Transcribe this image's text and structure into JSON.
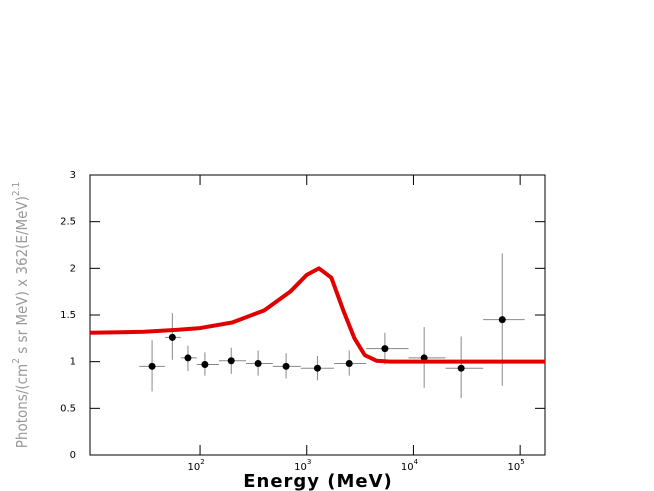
{
  "chart_data": {
    "type": "scatter",
    "xlabel": "Energy (MeV)",
    "ylabel": [
      "Photons/(cm",
      "2",
      " s sr MeV) x 362(E/MeV)",
      "2.1"
    ],
    "xscale": "log",
    "xlim": [
      9.3,
      171000
    ],
    "ylim": [
      0,
      3
    ],
    "xticks": [
      {
        "value": 100,
        "label": "10",
        "sup": "2"
      },
      {
        "value": 1000,
        "label": "10",
        "sup": "3"
      },
      {
        "value": 10000,
        "label": "10",
        "sup": "4"
      },
      {
        "value": 100000,
        "label": "10",
        "sup": "5"
      }
    ],
    "yticks": [
      0,
      0.5,
      1,
      1.5,
      2,
      2.5,
      3
    ],
    "series": [
      {
        "kind": "errorbar",
        "color": "#000000",
        "x": [
          35.5,
          55,
          77,
          111,
          196,
          350,
          640,
          1260,
          2500,
          5400,
          12600,
          28000,
          68000
        ],
        "values": [
          0.95,
          1.26,
          1.04,
          0.97,
          1.01,
          0.98,
          0.95,
          0.93,
          0.98,
          1.14,
          1.04,
          0.93,
          1.45
        ],
        "ylow": [
          0.68,
          1.02,
          0.9,
          0.85,
          0.87,
          0.85,
          0.82,
          0.8,
          0.85,
          0.97,
          0.72,
          0.61,
          0.74
        ],
        "yhigh": [
          1.23,
          1.52,
          1.17,
          1.1,
          1.15,
          1.12,
          1.09,
          1.06,
          1.12,
          1.31,
          1.37,
          1.27,
          2.16
        ],
        "xlow": [
          27,
          47,
          66,
          93,
          150,
          270,
          480,
          880,
          1800,
          3600,
          9000,
          20000,
          45000
        ],
        "xhigh": [
          47,
          66,
          93,
          150,
          270,
          480,
          880,
          1800,
          3600,
          9000,
          20000,
          45000,
          110000
        ]
      },
      {
        "kind": "line",
        "color": "#e00000",
        "x": [
          9.3,
          30,
          60,
          100,
          200,
          400,
          700,
          1000,
          1300,
          1700,
          2200,
          2800,
          3500,
          4500,
          6000,
          171000
        ],
        "values": [
          1.31,
          1.32,
          1.34,
          1.36,
          1.42,
          1.55,
          1.75,
          1.93,
          2.0,
          1.9,
          1.55,
          1.25,
          1.07,
          1.01,
          1.0,
          1.0
        ]
      }
    ]
  }
}
